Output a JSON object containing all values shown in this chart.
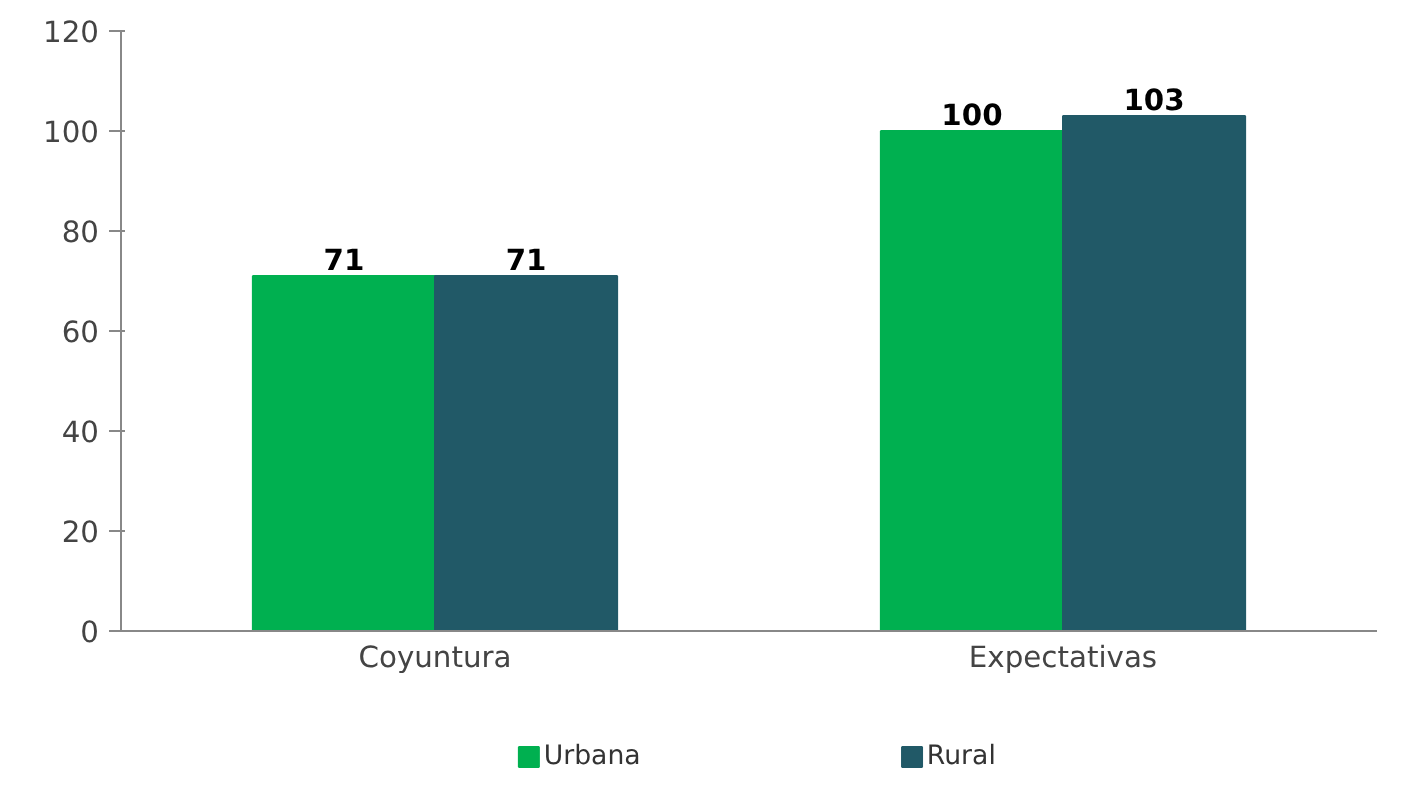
{
  "chart_data": {
    "type": "bar",
    "categories": [
      "Coyuntura",
      "Expectativas"
    ],
    "series": [
      {
        "name": "Urbana",
        "color": "#00b050",
        "values": [
          71,
          100
        ]
      },
      {
        "name": "Rural",
        "color": "#215967",
        "values": [
          71,
          103
        ]
      }
    ],
    "ylim": [
      0,
      120
    ],
    "yticks": [
      0,
      20,
      40,
      60,
      80,
      100,
      120
    ],
    "grid": false,
    "legend": "bottom",
    "data_labels": true
  }
}
